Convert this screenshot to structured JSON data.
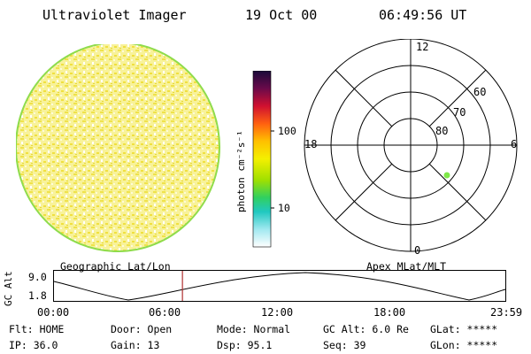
{
  "header": {
    "title": "Ultraviolet Imager",
    "date": "19 Oct 00",
    "time": "06:49:56 UT"
  },
  "colorbar": {
    "unit_label": "photon cm⁻²s⁻¹",
    "ticks": [
      {
        "label": "100",
        "value": 100
      },
      {
        "label": "10",
        "value": 10
      }
    ]
  },
  "polar": {
    "lat_labels": [
      "60",
      "70",
      "80"
    ],
    "mlt_labels": {
      "top": "12",
      "left": "18",
      "right": "6",
      "bottom": "0"
    },
    "dot_color": "#7fe84a"
  },
  "altitude_panel": {
    "left_label": "Geographic Lat/Lon",
    "right_label": "Apex MLat/MLT",
    "axis_label": "GC Alt",
    "y_ticks": [
      "9.0",
      "1.8"
    ],
    "x_ticks": [
      "00:00",
      "06:00",
      "12:00",
      "18:00",
      "23:59"
    ],
    "current_time_marker_hours": 6.83
  },
  "info": {
    "row1": {
      "flt": "Flt: HOME",
      "door": "Door: Open",
      "mode": "Mode: Normal",
      "gcalt": "GC Alt: 6.0 Re",
      "glat": "GLat: *****"
    },
    "row2": {
      "ip": "IP: 36.0",
      "gain": "Gain: 13",
      "dsp": "Dsp:  95.1",
      "seq": "Seq: 39",
      "glon": "GLon: *****"
    }
  },
  "colors": {
    "disk_base": "#f7f08a",
    "disk_edge": "#9fe05a",
    "marker": "#b03030"
  }
}
